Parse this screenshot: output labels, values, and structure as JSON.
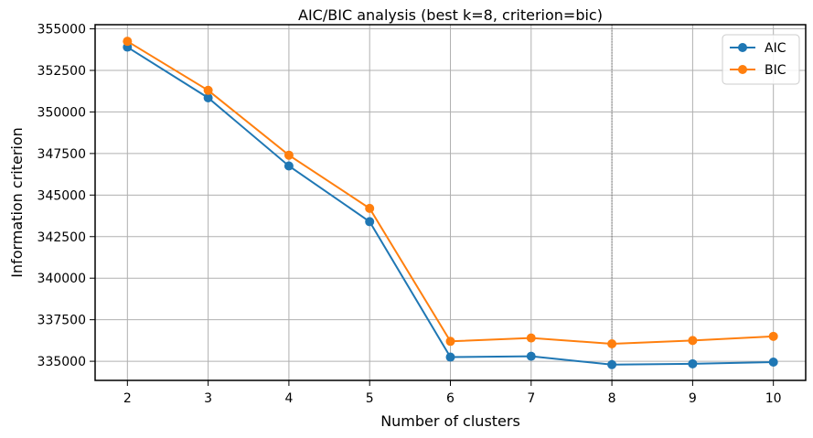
{
  "chart_data": {
    "type": "line",
    "title": "AIC/BIC analysis (best k=8, criterion=bic)",
    "xlabel": "Number of clusters",
    "ylabel": "Information criterion",
    "x": [
      2,
      3,
      4,
      5,
      6,
      7,
      8,
      9,
      10
    ],
    "x_ticks": [
      "2",
      "3",
      "4",
      "5",
      "6",
      "7",
      "8",
      "9",
      "10"
    ],
    "y_ticks": [
      "335000",
      "337500",
      "340000",
      "342500",
      "345000",
      "347500",
      "350000",
      "352500",
      "355000"
    ],
    "xlim": [
      1.6,
      10.4
    ],
    "ylim": [
      333850,
      355250
    ],
    "grid": true,
    "legend_position": "top-right",
    "best_k": 8,
    "series": [
      {
        "name": "AIC",
        "color": "#1f77b4",
        "values": [
          353900,
          350850,
          346750,
          343400,
          335250,
          335300,
          334800,
          334850,
          334950
        ]
      },
      {
        "name": "BIC",
        "color": "#ff7f0e",
        "values": [
          354250,
          351300,
          347400,
          344200,
          336200,
          336400,
          336050,
          336250,
          336500
        ]
      }
    ]
  }
}
